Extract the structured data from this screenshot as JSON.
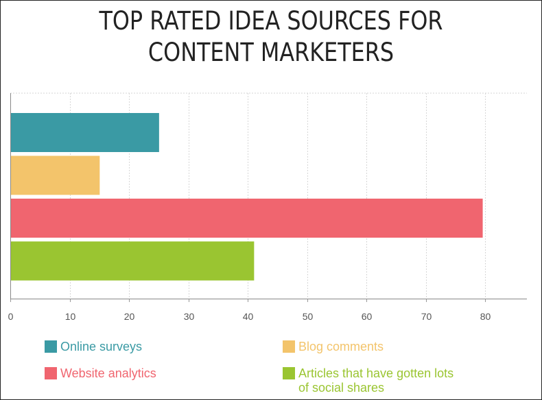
{
  "chart_data": {
    "type": "bar",
    "orientation": "horizontal",
    "title_lines": [
      "TOP RATED IDEA SOURCES FOR",
      "CONTENT MARKETERS"
    ],
    "categories": [
      "Online surveys",
      "Blog comments",
      "Website analytics",
      "Articles that have gotten lots of social shares"
    ],
    "values": [
      25,
      15,
      79.5,
      41
    ],
    "colors": [
      "#3a9aa4",
      "#f3c46b",
      "#f0656f",
      "#9ac531"
    ],
    "xlim": [
      0,
      87
    ],
    "xticks": [
      "0",
      "10",
      "20",
      "30",
      "40",
      "50",
      "60",
      "70",
      "80"
    ],
    "grid": true,
    "legend_position": "bottom",
    "legend_lines": [
      [
        "Online surveys"
      ],
      [
        "Blog comments"
      ],
      [
        "Website analytics"
      ],
      [
        "Articles that have gotten lots",
        "of social shares"
      ]
    ]
  }
}
